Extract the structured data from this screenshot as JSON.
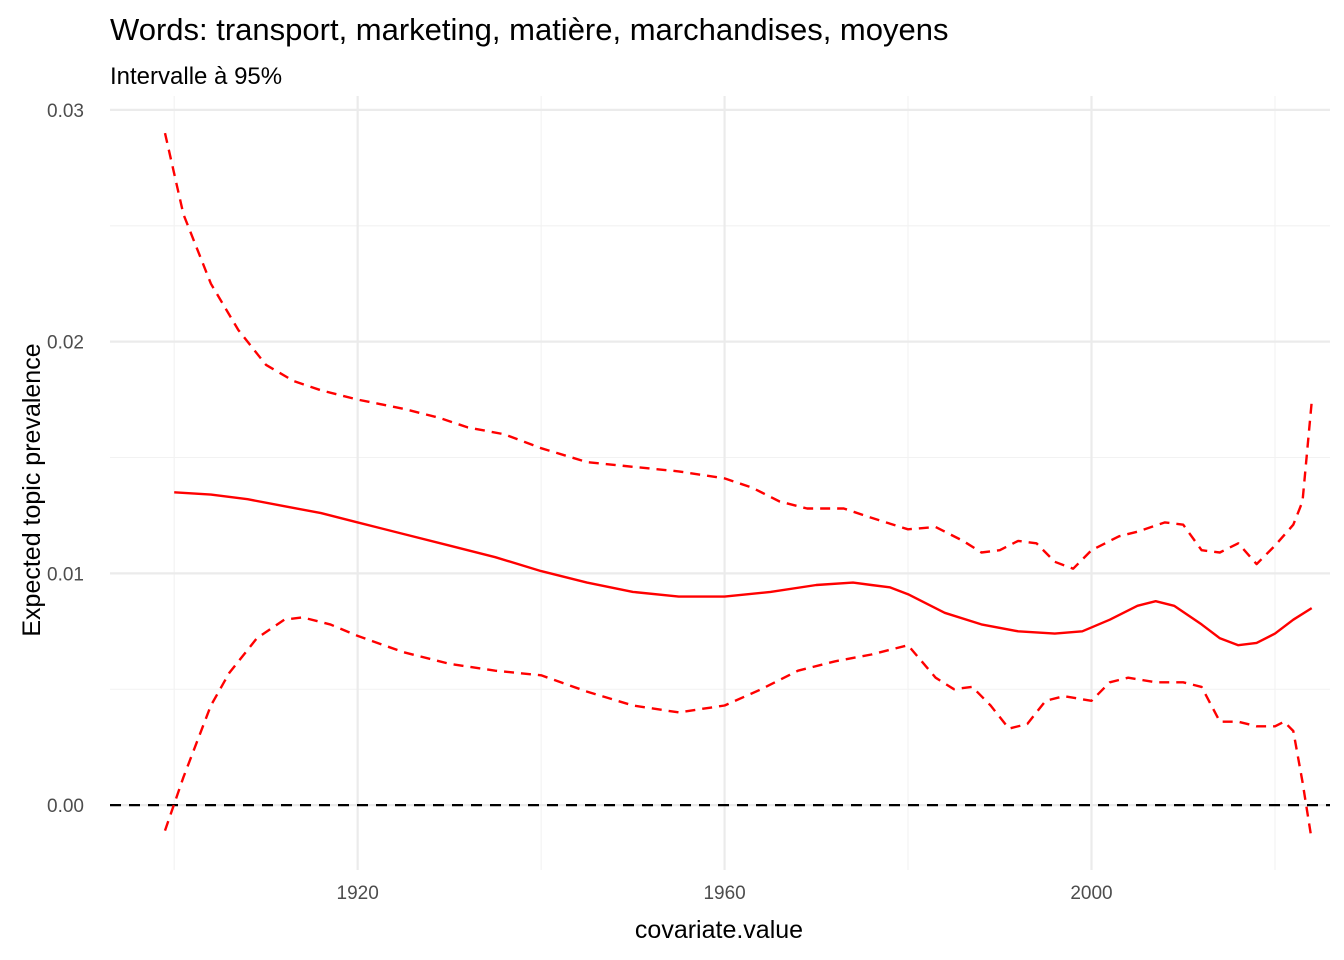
{
  "chart_data": {
    "type": "line",
    "title": "Words: transport, marketing, matière, marchandises, moyens",
    "subtitle": "Intervalle à 95%",
    "xlabel": "covariate.value",
    "ylabel": "Expected topic prevalence",
    "xlim": [
      1893,
      2026
    ],
    "ylim": [
      -0.0028,
      0.0306
    ],
    "x_ticks": [
      1920,
      1960,
      2000
    ],
    "x_tick_labels": [
      "1920",
      "1960",
      "2000"
    ],
    "y_ticks": [
      0.0,
      0.01,
      0.02,
      0.03
    ],
    "y_tick_labels": [
      "0.00",
      "0.01",
      "0.02",
      "0.03"
    ],
    "grid": true,
    "reference_line": {
      "y": 0,
      "style": "dashed",
      "color": "#000000"
    },
    "series": [
      {
        "role": "estimate",
        "style": "solid",
        "color": "#ff0000",
        "x": [
          1900,
          1904,
          1908,
          1912,
          1916,
          1920,
          1925,
          1930,
          1935,
          1940,
          1945,
          1950,
          1955,
          1960,
          1965,
          1970,
          1974,
          1976,
          1978,
          1980,
          1984,
          1988,
          1992,
          1996,
          1999,
          2002,
          2005,
          2007,
          2009,
          2012,
          2014,
          2016,
          2018,
          2020,
          2022,
          2024
        ],
        "y": [
          0.0135,
          0.0134,
          0.0132,
          0.0129,
          0.0126,
          0.0122,
          0.0117,
          0.0112,
          0.0107,
          0.0101,
          0.0096,
          0.0092,
          0.009,
          0.009,
          0.0092,
          0.0095,
          0.0096,
          0.0095,
          0.0094,
          0.0091,
          0.0083,
          0.0078,
          0.0075,
          0.0074,
          0.0075,
          0.008,
          0.0086,
          0.0088,
          0.0086,
          0.0078,
          0.0072,
          0.0069,
          0.007,
          0.0074,
          0.008,
          0.0085
        ]
      },
      {
        "role": "upper-95",
        "style": "dashed",
        "color": "#ff0000",
        "x": [
          1899,
          1901,
          1904,
          1907,
          1910,
          1913,
          1916,
          1920,
          1925,
          1929,
          1932,
          1936,
          1940,
          1945,
          1950,
          1955,
          1960,
          1963,
          1966,
          1969,
          1973,
          1976,
          1980,
          1983,
          1986,
          1988,
          1990,
          1992,
          1994,
          1996,
          1998,
          2000,
          2003,
          2005,
          2008,
          2010,
          2012,
          2014,
          2016,
          2018,
          2020,
          2022,
          2023,
          2024
        ],
        "y": [
          0.029,
          0.0255,
          0.0225,
          0.0205,
          0.019,
          0.0183,
          0.0179,
          0.0175,
          0.0171,
          0.0167,
          0.0163,
          0.016,
          0.0154,
          0.0148,
          0.0146,
          0.0144,
          0.0141,
          0.0137,
          0.0131,
          0.0128,
          0.0128,
          0.0124,
          0.0119,
          0.012,
          0.0114,
          0.0109,
          0.011,
          0.0114,
          0.0113,
          0.0105,
          0.0102,
          0.011,
          0.0116,
          0.0118,
          0.0122,
          0.0121,
          0.011,
          0.0109,
          0.0113,
          0.0104,
          0.0112,
          0.0121,
          0.0131,
          0.0174
        ]
      },
      {
        "role": "lower-95",
        "style": "dashed",
        "color": "#ff0000",
        "x": [
          1899,
          1901,
          1904,
          1906,
          1909,
          1912,
          1914,
          1917,
          1920,
          1925,
          1930,
          1935,
          1940,
          1945,
          1950,
          1955,
          1960,
          1964,
          1968,
          1972,
          1976,
          1980,
          1983,
          1985,
          1987,
          1989,
          1991,
          1993,
          1995,
          1997,
          2000,
          2002,
          2004,
          2007,
          2010,
          2012,
          2014,
          2016,
          2018,
          2020,
          2021,
          2022,
          2023,
          2024
        ],
        "y": [
          -0.0011,
          0.0012,
          0.0043,
          0.0057,
          0.0072,
          0.008,
          0.0081,
          0.0078,
          0.0073,
          0.0066,
          0.0061,
          0.0058,
          0.0056,
          0.0049,
          0.0043,
          0.004,
          0.0043,
          0.005,
          0.0058,
          0.0062,
          0.0065,
          0.0069,
          0.0055,
          0.005,
          0.0051,
          0.0043,
          0.0033,
          0.0035,
          0.0045,
          0.0047,
          0.0045,
          0.0053,
          0.0055,
          0.0053,
          0.0053,
          0.0051,
          0.0036,
          0.0036,
          0.0034,
          0.0034,
          0.0036,
          0.0032,
          0.001,
          -0.0015
        ]
      }
    ]
  }
}
